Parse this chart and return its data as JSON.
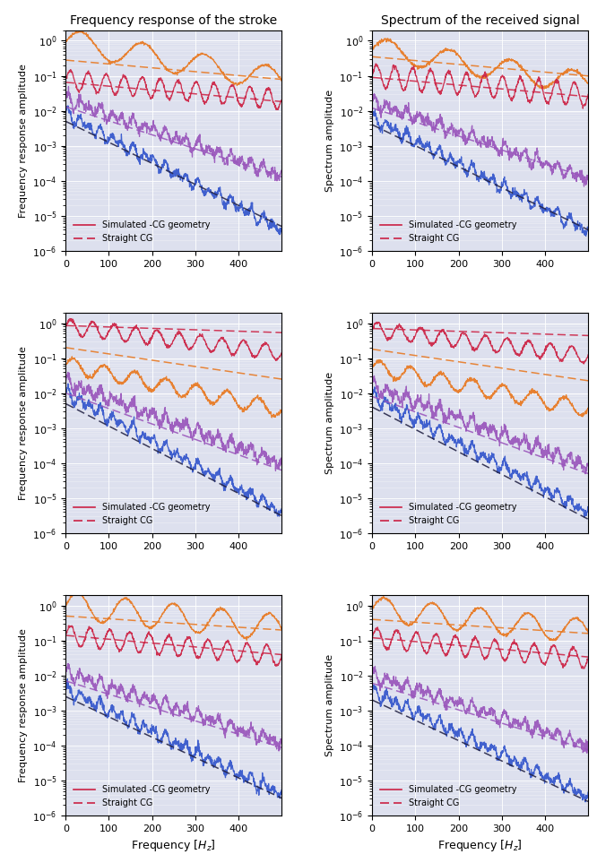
{
  "title_left": "Frequency response of the stroke",
  "title_right": "Spectrum of the received signal",
  "xlabel": "Frequency [Hz₂]",
  "ylabel_left": "Frequency response amplitude",
  "ylabel_right": "Spectrum amplitude",
  "xlim": [
    0,
    500
  ],
  "ylim_low": 1e-06,
  "ylim_high": 2.0,
  "legend_solid": "Simulated -CG geometry",
  "legend_dashed": "Straight CG",
  "bg_color": "#dde0ee",
  "colors": {
    "orange": "#E87820",
    "red": "#CC2244",
    "purple": "#9955BB",
    "blue": "#3355CC",
    "dark": "#222244"
  }
}
